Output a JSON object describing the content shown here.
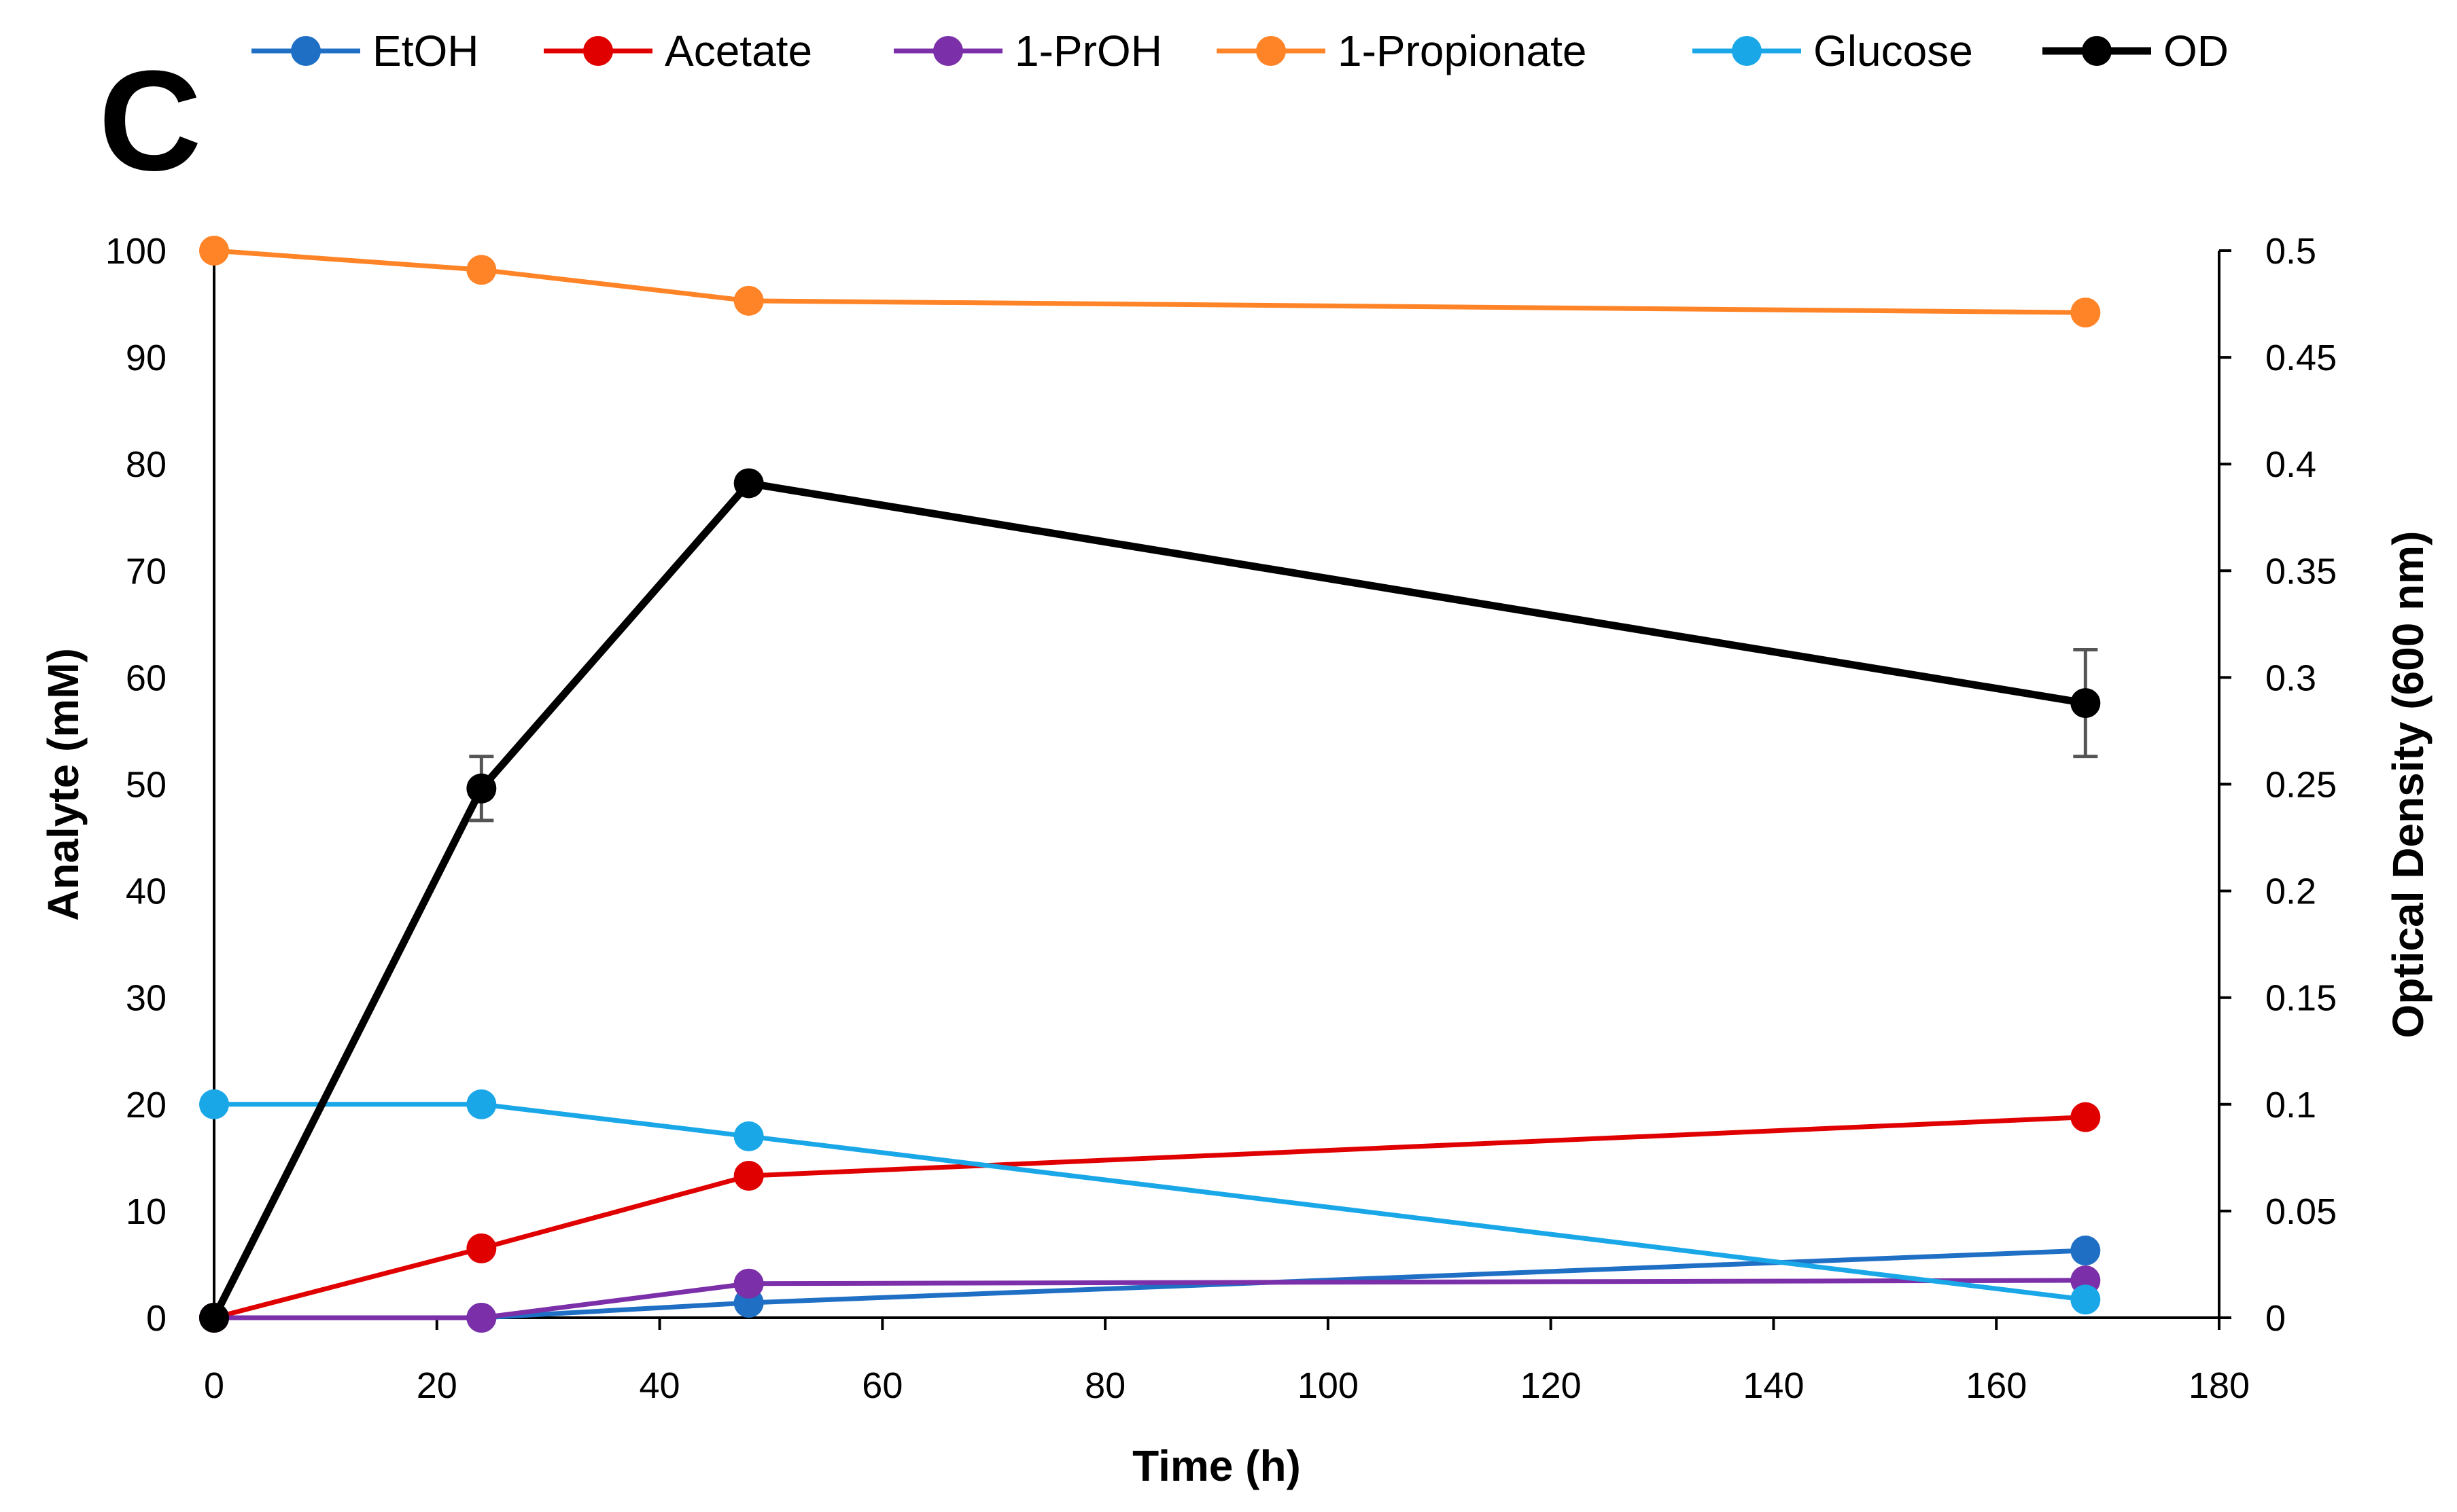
{
  "panel_label": "C",
  "chart_data": {
    "type": "line",
    "x_label": "Time (h)",
    "y_label": "Analyte (mM)",
    "y2_label": "Optical Density (600 nm)",
    "xlim": [
      0,
      180
    ],
    "ylim": [
      0,
      100
    ],
    "y2lim": [
      0,
      0.5
    ],
    "x_ticks": [
      "0",
      "20",
      "40",
      "60",
      "80",
      "100",
      "120",
      "140",
      "160",
      "180"
    ],
    "y_ticks": [
      "0",
      "10",
      "20",
      "30",
      "40",
      "50",
      "60",
      "70",
      "80",
      "90",
      "100"
    ],
    "y2_ticks": [
      "0",
      "0.05",
      "0.1",
      "0.15",
      "0.2",
      "0.25",
      "0.3",
      "0.35",
      "0.4",
      "0.45",
      "0.5"
    ],
    "legend_position": "top",
    "series": [
      {
        "name": "EtOH",
        "color": "#1F6FC5",
        "axis": "left",
        "x": [
          0,
          24,
          48,
          168
        ],
        "y": [
          0,
          0,
          1.4,
          6.3
        ]
      },
      {
        "name": "Acetate",
        "color": "#E00000",
        "axis": "left",
        "x": [
          0,
          24,
          48,
          168
        ],
        "y": [
          0,
          6.5,
          13.3,
          18.8
        ]
      },
      {
        "name": "1-PrOH",
        "color": "#7B2FA8",
        "axis": "left",
        "x": [
          0,
          24,
          48,
          168
        ],
        "y": [
          0,
          0,
          3.2,
          3.5
        ]
      },
      {
        "name": "1-Propionate",
        "color": "#FF8427",
        "axis": "left",
        "x": [
          0,
          24,
          48,
          168
        ],
        "y": [
          100,
          98.2,
          95.3,
          94.2
        ]
      },
      {
        "name": "Glucose",
        "color": "#1AA7E8",
        "axis": "left",
        "x": [
          0,
          24,
          48,
          168
        ],
        "y": [
          20,
          20,
          17,
          1.7
        ]
      },
      {
        "name": "OD",
        "color": "#000000",
        "axis": "right",
        "x": [
          0,
          24,
          48,
          168
        ],
        "y": [
          0,
          0.248,
          0.391,
          0.288
        ],
        "error": [
          0,
          0.015,
          0,
          0.025
        ]
      }
    ]
  }
}
